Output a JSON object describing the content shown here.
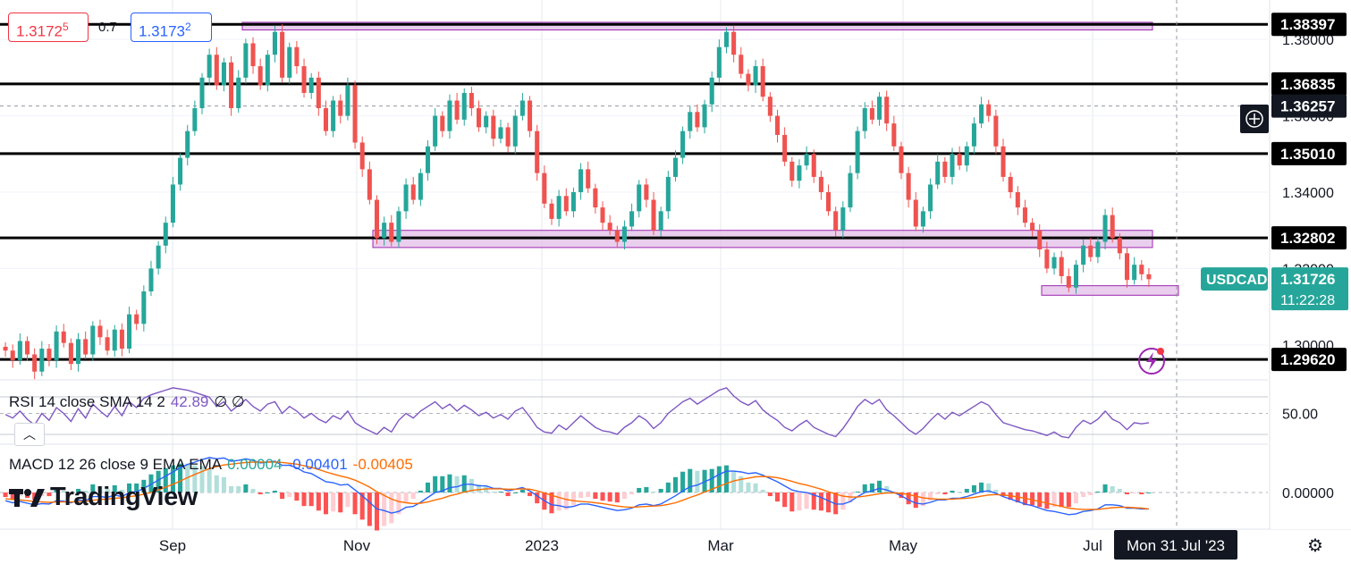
{
  "ticker": {
    "bid_main": "1.3172",
    "bid_small": "5",
    "spread": "0.7",
    "ask_main": "1.3173",
    "ask_small": "2"
  },
  "chart_data": [
    {
      "type": "candlestick",
      "symbol_label": "USDCAD",
      "last_price": "1.31726",
      "countdown": "11:22:28",
      "x_labels": [
        "Sep",
        "Nov",
        "2023",
        "Mar",
        "May",
        "Jul"
      ],
      "crosshair_date": "Mon 31 Jul '23",
      "y_ticks": [
        1.38,
        1.36,
        1.34,
        1.32,
        1.3
      ],
      "y_tick_labels": [
        "1.38000",
        "1.36000",
        "1.34000",
        "1.32000",
        "1.30000"
      ],
      "ylim": [
        1.292,
        1.388
      ],
      "crosshair_price": "1.36257",
      "horizontal_levels": [
        1.38397,
        1.36835,
        1.3501,
        1.32802,
        1.2962
      ],
      "horizontal_level_labels": [
        "1.38397",
        "1.36835",
        "1.35010",
        "1.32802",
        "1.29620"
      ],
      "zones": [
        {
          "from": 1.3825,
          "to": 1.3845
        },
        {
          "from": 1.3255,
          "to": 1.33
        },
        {
          "from": 1.313,
          "to": 1.3155
        }
      ],
      "closes": [
        1.2985,
        1.296,
        1.301,
        1.2975,
        1.293,
        1.299,
        1.296,
        1.3035,
        1.3005,
        1.295,
        1.3015,
        1.2975,
        1.305,
        1.302,
        1.2985,
        1.304,
        1.299,
        1.308,
        1.3055,
        1.314,
        1.32,
        1.326,
        1.332,
        1.342,
        1.349,
        1.356,
        1.362,
        1.37,
        1.376,
        1.368,
        1.374,
        1.362,
        1.37,
        1.379,
        1.373,
        1.368,
        1.376,
        1.382,
        1.37,
        1.378,
        1.373,
        1.366,
        1.37,
        1.362,
        1.356,
        1.364,
        1.36,
        1.368,
        1.353,
        1.346,
        1.338,
        1.328,
        1.332,
        1.327,
        1.335,
        1.342,
        1.338,
        1.345,
        1.352,
        1.36,
        1.356,
        1.364,
        1.359,
        1.366,
        1.362,
        1.357,
        1.36,
        1.354,
        1.357,
        1.352,
        1.36,
        1.364,
        1.356,
        1.345,
        1.337,
        1.333,
        1.339,
        1.335,
        1.34,
        1.346,
        1.341,
        1.336,
        1.332,
        1.33,
        1.327,
        1.331,
        1.335,
        1.342,
        1.338,
        1.33,
        1.335,
        1.344,
        1.349,
        1.356,
        1.361,
        1.357,
        1.363,
        1.37,
        1.378,
        1.382,
        1.376,
        1.371,
        1.368,
        1.373,
        1.365,
        1.36,
        1.355,
        1.348,
        1.343,
        1.347,
        1.35,
        1.344,
        1.34,
        1.335,
        1.33,
        1.336,
        1.345,
        1.356,
        1.362,
        1.359,
        1.365,
        1.358,
        1.352,
        1.345,
        1.338,
        1.331,
        1.335,
        1.342,
        1.348,
        1.344,
        1.35,
        1.347,
        1.352,
        1.358,
        1.363,
        1.36,
        1.352,
        1.344,
        1.34,
        1.336,
        1.332,
        1.33,
        1.325,
        1.32,
        1.323,
        1.318,
        1.315,
        1.321,
        1.326,
        1.323,
        1.327,
        1.334,
        1.328,
        1.324,
        1.317,
        1.321,
        1.3185,
        1.3172
      ]
    },
    {
      "type": "line",
      "indicator": "RSI",
      "legend": "RSI 14 close SMA 14 2",
      "legend_value": "42.89",
      "legend_flags": "∅ ∅",
      "level_label": "50.00",
      "series": [
        {
          "values": [
            49,
            46,
            52,
            45,
            40,
            50,
            44,
            55,
            50,
            43,
            54,
            46,
            58,
            52,
            47,
            56,
            48,
            60,
            55,
            63,
            66,
            68,
            70,
            72,
            71,
            70,
            68,
            66,
            64,
            56,
            60,
            52,
            57,
            62,
            56,
            52,
            58,
            60,
            50,
            56,
            52,
            46,
            50,
            45,
            42,
            48,
            45,
            52,
            42,
            38,
            35,
            32,
            38,
            34,
            44,
            50,
            46,
            52,
            56,
            60,
            54,
            58,
            52,
            57,
            53,
            48,
            51,
            46,
            49,
            45,
            52,
            55,
            47,
            38,
            34,
            33,
            40,
            36,
            42,
            48,
            43,
            38,
            35,
            34,
            32,
            38,
            42,
            48,
            44,
            37,
            42,
            50,
            55,
            60,
            63,
            58,
            62,
            66,
            70,
            72,
            65,
            60,
            57,
            61,
            53,
            48,
            44,
            38,
            35,
            40,
            44,
            38,
            35,
            32,
            30,
            37,
            46,
            56,
            62,
            58,
            62,
            53,
            48,
            42,
            36,
            32,
            37,
            44,
            50,
            45,
            51,
            48,
            52,
            56,
            60,
            57,
            49,
            42,
            40,
            38,
            36,
            35,
            33,
            31,
            34,
            30,
            29,
            38,
            44,
            41,
            45,
            52,
            45,
            42,
            36,
            42,
            41,
            42
          ]
        }
      ]
    },
    {
      "type": "line",
      "indicator": "MACD",
      "legend": "MACD 12 26 close 9 EMA EMA",
      "legend_values": [
        "0.00004",
        "-0.00401",
        "-0.00405"
      ],
      "level_label": "0.00000",
      "series": [
        {
          "values": [
            -0.002,
            -0.0025,
            -0.0022,
            -0.0026,
            -0.003,
            -0.0027,
            -0.0028,
            -0.002,
            -0.0021,
            -0.0025,
            -0.0018,
            -0.002,
            -0.001,
            -0.001,
            -0.0012,
            -0.0006,
            -0.001,
            0.0,
            0.0002,
            0.001,
            0.002,
            0.003,
            0.004,
            0.005,
            0.006,
            0.0068,
            0.0074,
            0.008,
            0.0085,
            0.0082,
            0.0084,
            0.0076,
            0.0078,
            0.0082,
            0.0078,
            0.0072,
            0.0074,
            0.0076,
            0.0066,
            0.0066,
            0.006,
            0.005,
            0.0046,
            0.0036,
            0.0026,
            0.0024,
            0.0018,
            0.002,
            0.0006,
            -0.0008,
            -0.0024,
            -0.004,
            -0.0044,
            -0.005,
            -0.0046,
            -0.0036,
            -0.0034,
            -0.0024,
            -0.0012,
            0.0,
            0.0004,
            0.0012,
            0.0014,
            0.002,
            0.002,
            0.0016,
            0.0016,
            0.001,
            0.001,
            0.0004,
            0.0008,
            0.0012,
            0.0004,
            -0.0008,
            -0.002,
            -0.003,
            -0.0032,
            -0.0036,
            -0.0034,
            -0.0028,
            -0.0028,
            -0.0032,
            -0.0036,
            -0.004,
            -0.0044,
            -0.0042,
            -0.0038,
            -0.003,
            -0.0028,
            -0.0032,
            -0.0028,
            -0.0018,
            -0.0008,
            0.0004,
            0.0014,
            0.0018,
            0.0026,
            0.0034,
            0.0044,
            0.0052,
            0.0052,
            0.005,
            0.0046,
            0.0048,
            0.0042,
            0.0034,
            0.0026,
            0.0016,
            0.0006,
            0.0002,
            0.0,
            -0.0006,
            -0.0012,
            -0.002,
            -0.0028,
            -0.0028,
            -0.0022,
            -0.001,
            0.0,
            0.0004,
            0.001,
            0.0006,
            0.0,
            -0.0008,
            -0.0018,
            -0.0026,
            -0.0028,
            -0.0024,
            -0.0018,
            -0.0018,
            -0.0014,
            -0.0014,
            -0.001,
            -0.0004,
            0.0002,
            0.0004,
            -0.0002,
            -0.001,
            -0.0016,
            -0.0022,
            -0.0028,
            -0.0032,
            -0.0038,
            -0.0044,
            -0.0046,
            -0.005,
            -0.0054,
            -0.0052,
            -0.0046,
            -0.0044,
            -0.004,
            -0.003,
            -0.003,
            -0.0032,
            -0.0038,
            -0.0038,
            -0.004,
            -0.004
          ]
        },
        {
          "values": [
            -0.0015,
            -0.0017,
            -0.0018,
            -0.002,
            -0.0022,
            -0.0023,
            -0.0024,
            -0.0023,
            -0.0023,
            -0.0023,
            -0.0022,
            -0.0022,
            -0.0019,
            -0.0017,
            -0.0016,
            -0.0014,
            -0.0013,
            -0.001,
            -0.0008,
            -0.0004,
            0.0,
            0.0006,
            0.0013,
            0.002,
            0.0028,
            0.0036,
            0.0044,
            0.0051,
            0.0058,
            0.0063,
            0.0067,
            0.0069,
            0.0071,
            0.0073,
            0.0074,
            0.0074,
            0.0074,
            0.0074,
            0.0073,
            0.0071,
            0.0069,
            0.0065,
            0.0061,
            0.0056,
            0.005,
            0.0045,
            0.004,
            0.0036,
            0.003,
            0.0022,
            0.0013,
            0.0002,
            -0.0007,
            -0.0016,
            -0.0022,
            -0.0025,
            -0.0027,
            -0.0026,
            -0.0023,
            -0.0018,
            -0.0014,
            -0.0008,
            -0.0004,
            0.0001,
            0.0005,
            0.0007,
            0.0009,
            0.0009,
            0.0009,
            0.0008,
            0.0008,
            0.0009,
            0.0008,
            0.0004,
            -0.0001,
            -0.0007,
            -0.0012,
            -0.0017,
            -0.002,
            -0.0022,
            -0.0023,
            -0.0025,
            -0.0027,
            -0.003,
            -0.0033,
            -0.0035,
            -0.0036,
            -0.0035,
            -0.0034,
            -0.0033,
            -0.0032,
            -0.0029,
            -0.0025,
            -0.0019,
            -0.0012,
            -0.0006,
            0.0001,
            0.0008,
            0.0015,
            0.0022,
            0.0028,
            0.0032,
            0.0035,
            0.0038,
            0.0039,
            0.0038,
            0.0036,
            0.0032,
            0.0027,
            0.0022,
            0.0018,
            0.0013,
            0.0008,
            0.0002,
            -0.0004,
            -0.0009,
            -0.0011,
            -0.0011,
            -0.0009,
            -0.0006,
            -0.0003,
            -0.0001,
            -0.0001,
            -0.0002,
            -0.0005,
            -0.0009,
            -0.0013,
            -0.0015,
            -0.0016,
            -0.0016,
            -0.0016,
            -0.0015,
            -0.0014,
            -0.0012,
            -0.0009,
            -0.0006,
            -0.0005,
            -0.0006,
            -0.0008,
            -0.0011,
            -0.0014,
            -0.0018,
            -0.0022,
            -0.0026,
            -0.003,
            -0.0034,
            -0.0038,
            -0.004,
            -0.0041,
            -0.0041,
            -0.0041,
            -0.0039,
            -0.0037,
            -0.0036,
            -0.0036,
            -0.0037,
            -0.0038,
            -0.004
          ]
        }
      ],
      "histogram_colors": {
        "pos_strong": "#26a69a",
        "pos_weak": "#b2dfdb",
        "neg_strong": "#ff5252",
        "neg_weak": "#ffcdd2"
      }
    }
  ],
  "colors": {
    "up": "#26a69a",
    "down": "#ef5350",
    "zone_fill": "#e1bee7",
    "zone_border": "#9c27b0",
    "rsi_line": "#7e57c2",
    "macd_line": "#2962ff",
    "signal_line": "#ff6d00",
    "accent_label": "#26a69a"
  },
  "branding": {
    "logo_text": "TradingView"
  },
  "icons": {
    "crosshair": "crosshair-plus-icon",
    "alert": "lightning-bolt-icon",
    "settings": "gear-icon",
    "collapse": "chevron-up-icon"
  }
}
